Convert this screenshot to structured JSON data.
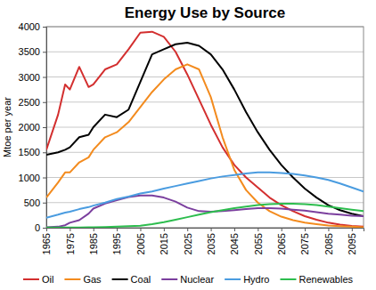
{
  "chart_data": {
    "type": "line",
    "title": "Energy Use by Source",
    "y_label": "Mtoe per year",
    "x": [
      1965,
      1970,
      1973,
      1975,
      1979,
      1983,
      1985,
      1990,
      1995,
      2000,
      2005,
      2010,
      2015,
      2020,
      2025,
      2030,
      2035,
      2040,
      2045,
      2050,
      2055,
      2060,
      2065,
      2070,
      2075,
      2080,
      2085,
      2090,
      2095,
      2100
    ],
    "series": [
      {
        "name": "Oil",
        "color": "#d32f2f",
        "values": [
          1550,
          2250,
          2850,
          2750,
          3200,
          2800,
          2850,
          3150,
          3250,
          3550,
          3880,
          3900,
          3800,
          3500,
          3050,
          2550,
          2050,
          1600,
          1250,
          1000,
          800,
          600,
          450,
          330,
          230,
          160,
          100,
          60,
          35,
          20
        ]
      },
      {
        "name": "Gas",
        "color": "#f38b1e",
        "values": [
          600,
          900,
          1100,
          1100,
          1300,
          1400,
          1550,
          1800,
          1900,
          2100,
          2400,
          2700,
          2950,
          3150,
          3250,
          3150,
          2600,
          1800,
          1150,
          750,
          500,
          330,
          220,
          150,
          100,
          70,
          45,
          30,
          20,
          10
        ]
      },
      {
        "name": "Coal",
        "color": "#000000",
        "values": [
          1450,
          1500,
          1550,
          1600,
          1800,
          1850,
          2000,
          2250,
          2200,
          2350,
          2900,
          3450,
          3550,
          3650,
          3680,
          3620,
          3450,
          3150,
          2750,
          2300,
          1900,
          1550,
          1250,
          1000,
          780,
          600,
          450,
          350,
          280,
          230
        ]
      },
      {
        "name": "Nuclear",
        "color": "#7b3f9e",
        "values": [
          10,
          20,
          50,
          100,
          150,
          280,
          380,
          480,
          550,
          610,
          640,
          640,
          600,
          520,
          400,
          330,
          320,
          330,
          350,
          370,
          390,
          390,
          380,
          360,
          340,
          310,
          280,
          260,
          240,
          230
        ]
      },
      {
        "name": "Hydro",
        "color": "#4a9ce0",
        "values": [
          200,
          260,
          300,
          320,
          370,
          410,
          440,
          500,
          570,
          620,
          680,
          720,
          780,
          830,
          880,
          930,
          980,
          1020,
          1050,
          1080,
          1100,
          1100,
          1090,
          1070,
          1040,
          1000,
          950,
          880,
          800,
          720
        ]
      },
      {
        "name": "Renewables",
        "color": "#2dbd4e",
        "values": [
          5,
          5,
          5,
          5,
          5,
          10,
          10,
          15,
          20,
          30,
          40,
          70,
          110,
          160,
          210,
          260,
          310,
          350,
          390,
          420,
          450,
          470,
          480,
          480,
          470,
          450,
          420,
          390,
          360,
          330
        ]
      }
    ],
    "xlim": [
      1965,
      2100
    ],
    "xticks": [
      1965,
      1975,
      1985,
      1995,
      2005,
      2015,
      2025,
      2035,
      2045,
      2055,
      2065,
      2075,
      2085,
      2095
    ],
    "ylim": [
      0,
      4000
    ],
    "yticks": [
      0,
      500,
      1000,
      1500,
      2000,
      2500,
      3000,
      3500,
      4000
    ],
    "grid": true,
    "legend": "bottom"
  }
}
